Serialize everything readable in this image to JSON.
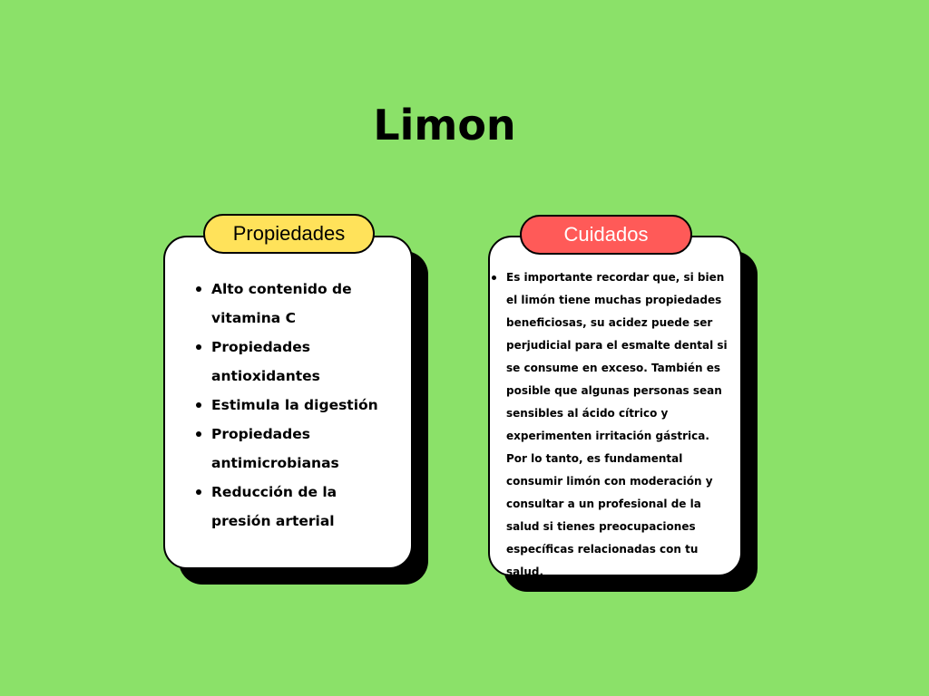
{
  "page": {
    "title": "Limon",
    "background_color": "#8be169"
  },
  "left_card": {
    "header": "Propiedades",
    "header_color": "#ffe25a",
    "items": [
      "Alto contenido de vitamina C",
      "Propiedades antioxidantes",
      "Estimula la digestión",
      "Propiedades antimicrobianas",
      "Reducción de la presión arterial"
    ]
  },
  "right_card": {
    "header": "Cuidados",
    "header_color": "#ff5a58",
    "header_text_color": "#ffffff",
    "items": [
      "Es importante recordar que, si bien el limón tiene muchas propiedades beneficiosas, su acidez puede ser perjudicial para el esmalte dental si se consume en exceso. También es posible que algunas personas sean sensibles al ácido cítrico y experimenten irritación gástrica. Por lo tanto, es fundamental consumir limón con moderación y consultar a un profesional de la salud si tienes preocupaciones específicas relacionadas con tu salud."
    ]
  }
}
